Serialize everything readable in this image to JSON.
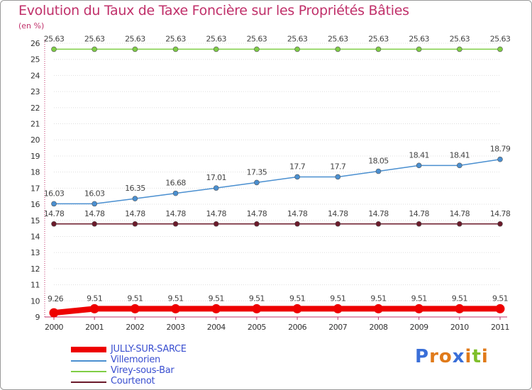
{
  "title": "Evolution du Taux de Taxe Foncière sur les Propriétés Bâties",
  "unit_label": "(en %)",
  "logo_text": "Proxiti",
  "colors": {
    "title": "#c0306a",
    "axis": "#c0306a",
    "legend_text": "#3a4fd0"
  },
  "chart_data": {
    "type": "line",
    "title": "Evolution du Taux de Taxe Foncière sur les Propriétés Bâties",
    "ylabel": "(en %)",
    "xlabel": "",
    "x": [
      "2000",
      "2001",
      "2002",
      "2003",
      "2004",
      "2005",
      "2006",
      "2007",
      "2008",
      "2009",
      "2010",
      "2011"
    ],
    "ylim": [
      9,
      26
    ],
    "yticks": [
      9,
      10,
      11,
      12,
      13,
      14,
      15,
      16,
      17,
      18,
      19,
      20,
      21,
      22,
      23,
      24,
      25,
      26
    ],
    "legend_position": "bottom-left",
    "series": [
      {
        "name": "JULLY-SUR-SARCE",
        "color": "#ee0000",
        "values": [
          9.26,
          9.51,
          9.51,
          9.51,
          9.51,
          9.51,
          9.51,
          9.51,
          9.51,
          9.51,
          9.51,
          9.51
        ],
        "labels": [
          "9.26",
          "9.51",
          "9.51",
          "9.51",
          "9.51",
          "9.51",
          "9.51",
          "9.51",
          "9.51",
          "9.51",
          "9.51",
          "9.51"
        ]
      },
      {
        "name": "Villemorien",
        "color": "#4a8fd0",
        "values": [
          16.03,
          16.03,
          16.35,
          16.68,
          17.01,
          17.35,
          17.7,
          17.7,
          18.05,
          18.41,
          18.41,
          18.79
        ],
        "labels": [
          "16.03",
          "16.03",
          "16.35",
          "16.68",
          "17.01",
          "17.35",
          "17.7",
          "17.7",
          "18.05",
          "18.41",
          "18.41",
          "18.79"
        ]
      },
      {
        "name": "Virey-sous-Bar",
        "color": "#7fce45",
        "values": [
          25.63,
          25.63,
          25.63,
          25.63,
          25.63,
          25.63,
          25.63,
          25.63,
          25.63,
          25.63,
          25.63,
          25.63
        ],
        "labels": [
          "25.63",
          "25.63",
          "25.63",
          "25.63",
          "25.63",
          "25.63",
          "25.63",
          "25.63",
          "25.63",
          "25.63",
          "25.63",
          "25.63"
        ]
      },
      {
        "name": "Courtenot",
        "color": "#6b1a2a",
        "values": [
          14.78,
          14.78,
          14.78,
          14.78,
          14.78,
          14.78,
          14.78,
          14.78,
          14.78,
          14.78,
          14.78,
          14.78
        ],
        "labels": [
          "14.78",
          "14.78",
          "14.78",
          "14.78",
          "14.78",
          "14.78",
          "14.78",
          "14.78",
          "14.78",
          "14.78",
          "14.78",
          "14.78"
        ]
      }
    ]
  }
}
